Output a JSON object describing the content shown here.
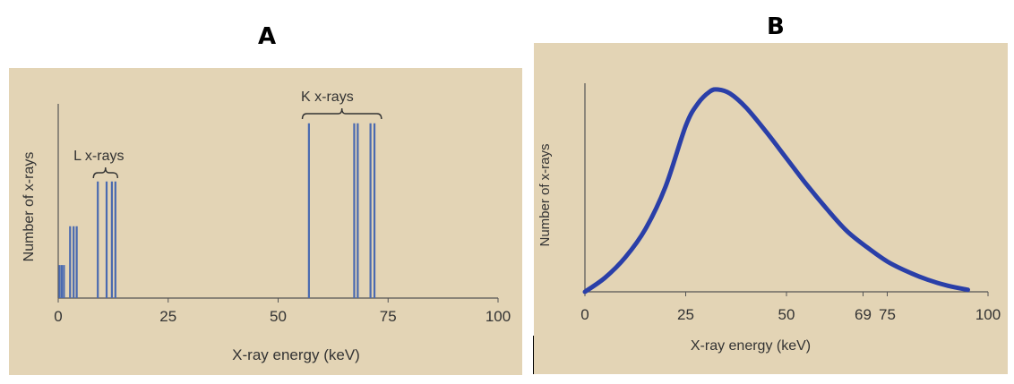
{
  "panels": {
    "a": {
      "letter": "A"
    },
    "b": {
      "letter": "B"
    }
  },
  "chart_data": [
    {
      "type": "bar",
      "title": "",
      "xlabel": "X-ray energy (keV)",
      "ylabel": "Number of x-rays",
      "xlim": [
        0,
        100
      ],
      "xticks": [
        "0",
        "25",
        "50",
        "75",
        "100"
      ],
      "ylim": [
        0,
        100
      ],
      "lines": [
        {
          "x": 0.3,
          "y": 17
        },
        {
          "x": 0.8,
          "y": 17
        },
        {
          "x": 1.3,
          "y": 17
        },
        {
          "x": 2.7,
          "y": 37
        },
        {
          "x": 3.5,
          "y": 37
        },
        {
          "x": 4.2,
          "y": 37
        },
        {
          "x": 9.0,
          "y": 60
        },
        {
          "x": 11.0,
          "y": 60
        },
        {
          "x": 12.2,
          "y": 60
        },
        {
          "x": 13.0,
          "y": 60
        },
        {
          "x": 57.0,
          "y": 90
        },
        {
          "x": 67.3,
          "y": 90
        },
        {
          "x": 68.1,
          "y": 90
        },
        {
          "x": 71.0,
          "y": 90
        },
        {
          "x": 71.9,
          "y": 90
        }
      ],
      "annotations": [
        {
          "label": "L x-rays",
          "x_from": 8.0,
          "x_to": 13.5
        },
        {
          "label": "K x-rays",
          "x_from": 55.5,
          "x_to": 73.5
        }
      ],
      "color": "#4a6ab0"
    },
    {
      "type": "line",
      "title": "",
      "xlabel": "X-ray energy (keV)",
      "ylabel": "Number of x-rays",
      "xlim": [
        0,
        100
      ],
      "xticks": [
        "0",
        "25",
        "50",
        "69",
        "75",
        "100"
      ],
      "ylim": [
        0,
        100
      ],
      "x": [
        0,
        5,
        10,
        15,
        20,
        25,
        28,
        31,
        33,
        36,
        40,
        45,
        50,
        55,
        60,
        65,
        70,
        75,
        80,
        85,
        90,
        95
      ],
      "y": [
        0,
        7,
        17,
        31,
        52,
        82,
        93,
        99,
        100,
        98,
        91,
        79,
        66,
        53,
        41,
        30,
        22,
        15,
        10,
        6,
        3,
        1
      ],
      "color": "#2a3fa8"
    }
  ]
}
